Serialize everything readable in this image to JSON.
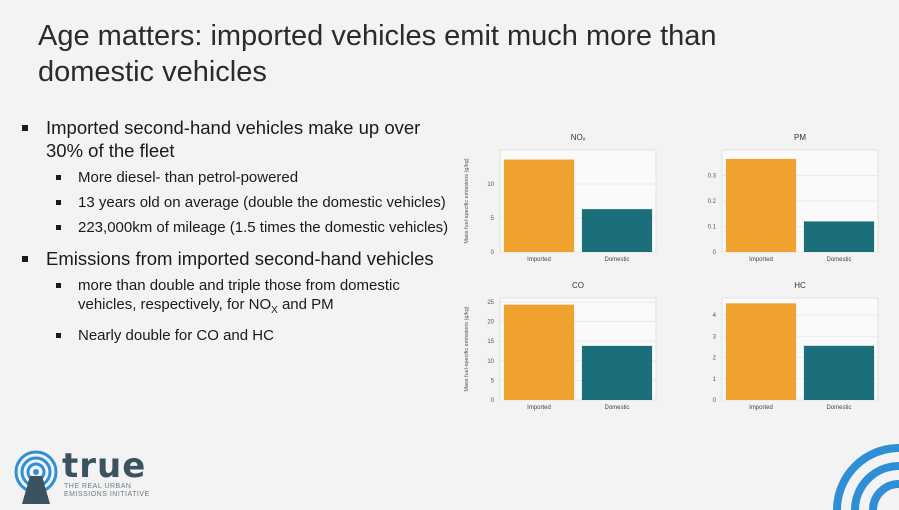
{
  "slide": {
    "title": "Age matters: imported vehicles emit much more than domestic vehicles",
    "bullets": [
      {
        "text": "Imported second-hand vehicles make up over 30% of the fleet",
        "sub": [
          "More diesel- than petrol-powered",
          "13 years old on average (double the domestic vehicles)",
          "223,000km of mileage (1.5 times the domestic vehicles)"
        ]
      },
      {
        "text": "Emissions from imported second-hand vehicles",
        "sub": [
          "more than double and triple those from domestic vehicles, respectively, for NOX and PM",
          "Nearly double for CO and HC"
        ]
      }
    ],
    "logo": {
      "name": "true",
      "tagline": "THE REAL URBAN EMISSIONS INITIATIVE"
    }
  },
  "colors": {
    "imported": "#f0a22e",
    "domestic": "#1b6f7a",
    "arc": "#2f8fd6"
  },
  "chart_data": [
    {
      "type": "bar",
      "title": "NOₓ",
      "ylabel": "Mass fuel-specific emissions (g/kg)",
      "categories": [
        "Imported",
        "Domestic"
      ],
      "values": [
        13.6,
        6.3
      ],
      "ylim": [
        0,
        15
      ],
      "yticks": [
        0,
        5,
        10
      ]
    },
    {
      "type": "bar",
      "title": "PM",
      "ylabel": "",
      "categories": [
        "Imported",
        "Domestic"
      ],
      "values": [
        0.365,
        0.12
      ],
      "ylim": [
        0,
        0.4
      ],
      "yticks": [
        0.0,
        0.1,
        0.2,
        0.3
      ]
    },
    {
      "type": "bar",
      "title": "CO",
      "ylabel": "Mass fuel-specific emissions (g/kg)",
      "categories": [
        "Imported",
        "Domestic"
      ],
      "values": [
        24.3,
        13.8
      ],
      "ylim": [
        0,
        26
      ],
      "yticks": [
        0,
        5,
        10,
        15,
        20,
        25
      ]
    },
    {
      "type": "bar",
      "title": "HC",
      "ylabel": "",
      "categories": [
        "Imported",
        "Domestic"
      ],
      "values": [
        4.55,
        2.55
      ],
      "ylim": [
        0,
        4.8
      ],
      "yticks": [
        0,
        1,
        2,
        3,
        4
      ]
    }
  ]
}
